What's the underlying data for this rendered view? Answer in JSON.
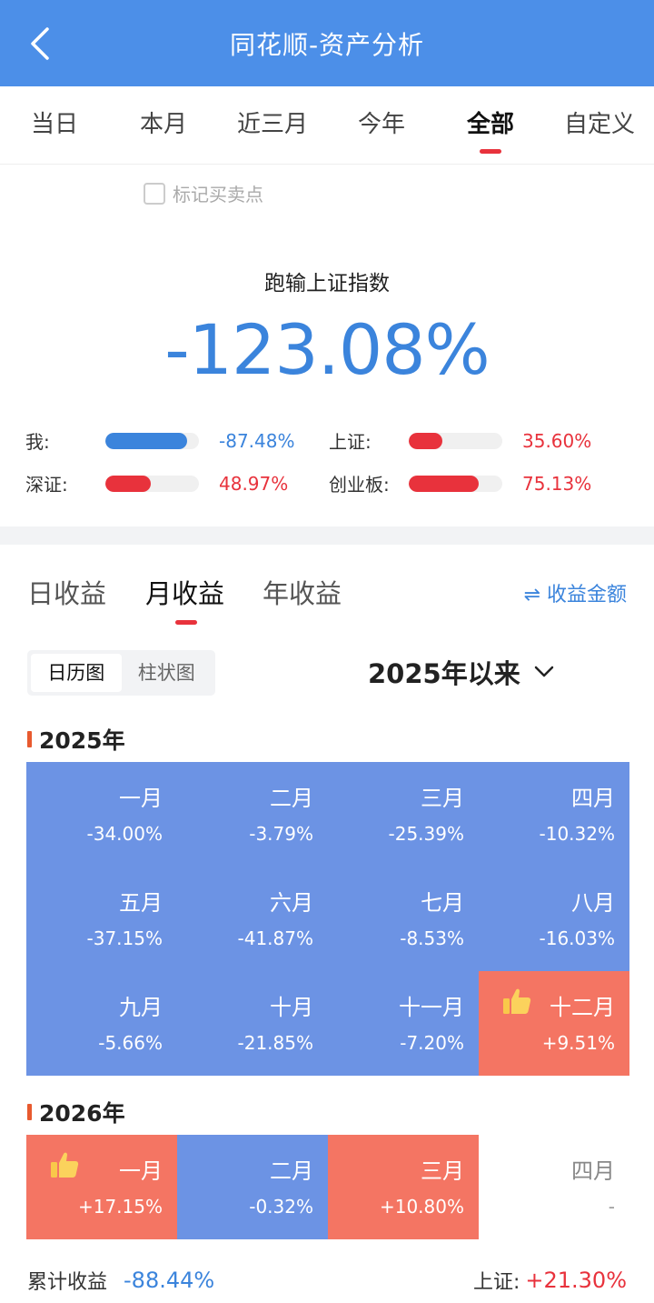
{
  "header": {
    "title": "同花顺-资产分析"
  },
  "tabs": [
    {
      "label": "当日",
      "active": false
    },
    {
      "label": "本月",
      "active": false
    },
    {
      "label": "近三月",
      "active": false
    },
    {
      "label": "今年",
      "active": false
    },
    {
      "label": "全部",
      "active": true
    },
    {
      "label": "自定义",
      "active": false
    }
  ],
  "mark_points": {
    "label": "标记买卖点",
    "checked": false
  },
  "summary": {
    "title": "跑输上证指数",
    "value": "-123.08%"
  },
  "comparisons": [
    {
      "label": "我:",
      "value": "-87.48%",
      "fill": 0.87,
      "color": "#3b84dc"
    },
    {
      "label": "上证:",
      "value": "35.60%",
      "fill": 0.36,
      "color": "#e8323c"
    },
    {
      "label": "深证:",
      "value": "48.97%",
      "fill": 0.49,
      "color": "#e8323c"
    },
    {
      "label": "创业板:",
      "value": "75.13%",
      "fill": 0.75,
      "color": "#e8323c"
    }
  ],
  "subtabs": {
    "daily": "日收益",
    "monthly": "月收益",
    "yearly": "年收益",
    "amount_toggle": "⇌ 收益金额"
  },
  "view_switch": {
    "calendar": "日历图",
    "bar": "柱状图"
  },
  "period": {
    "label": "2025年以来"
  },
  "years": [
    {
      "title": "2025年",
      "months": [
        {
          "name": "一月",
          "value": "-34.00%",
          "type": "neg"
        },
        {
          "name": "二月",
          "value": "-3.79%",
          "type": "neg"
        },
        {
          "name": "三月",
          "value": "-25.39%",
          "type": "neg"
        },
        {
          "name": "四月",
          "value": "-10.32%",
          "type": "neg"
        },
        {
          "name": "五月",
          "value": "-37.15%",
          "type": "neg"
        },
        {
          "name": "六月",
          "value": "-41.87%",
          "type": "neg"
        },
        {
          "name": "七月",
          "value": "-8.53%",
          "type": "neg"
        },
        {
          "name": "八月",
          "value": "-16.03%",
          "type": "neg"
        },
        {
          "name": "九月",
          "value": "-5.66%",
          "type": "neg"
        },
        {
          "name": "十月",
          "value": "-21.85%",
          "type": "neg"
        },
        {
          "name": "十一月",
          "value": "-7.20%",
          "type": "neg"
        },
        {
          "name": "十二月",
          "value": "+9.51%",
          "type": "pos",
          "thumb": true
        }
      ]
    },
    {
      "title": "2026年",
      "months": [
        {
          "name": "一月",
          "value": "+17.15%",
          "type": "pos",
          "thumb": true
        },
        {
          "name": "二月",
          "value": "-0.32%",
          "type": "neg"
        },
        {
          "name": "三月",
          "value": "+10.80%",
          "type": "pos"
        },
        {
          "name": "四月",
          "value": "-",
          "type": "empty"
        }
      ]
    }
  ],
  "footer": {
    "cum_label": "累计收益",
    "cum_value": "-88.44%",
    "index_label": "上证:",
    "index_value": "+21.30%"
  }
}
